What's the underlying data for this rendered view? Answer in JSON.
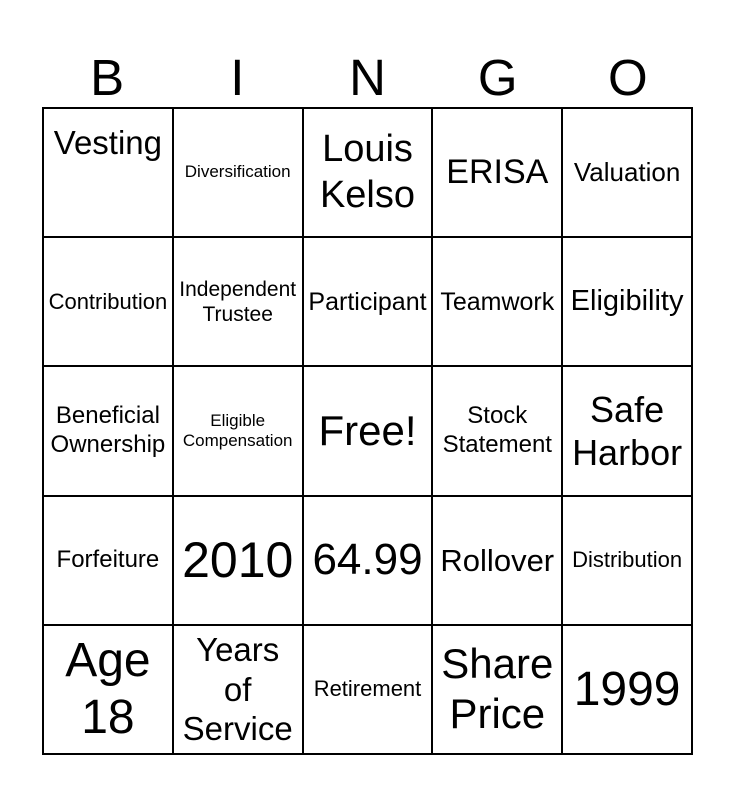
{
  "title": "BINGO",
  "header": {
    "letters": [
      "B",
      "I",
      "N",
      "G",
      "O"
    ]
  },
  "board": {
    "rows": 5,
    "columns": 5,
    "free_space_label": "Free!",
    "cells": [
      {
        "label": "Vesting"
      },
      {
        "label": "Diversification"
      },
      {
        "label": "Louis\nKelso"
      },
      {
        "label": "ERISA"
      },
      {
        "label": "Valuation"
      },
      {
        "label": "Contribution"
      },
      {
        "label": "Independent\nTrustee"
      },
      {
        "label": "Participant"
      },
      {
        "label": "Teamwork"
      },
      {
        "label": "Eligibility"
      },
      {
        "label": "Beneficial\nOwnership"
      },
      {
        "label": "Eligible\nCompensation"
      },
      {
        "label": "Free!"
      },
      {
        "label": "Stock\nStatement"
      },
      {
        "label": "Safe\nHarbor"
      },
      {
        "label": "Forfeiture"
      },
      {
        "label": "2010"
      },
      {
        "label": "64.99"
      },
      {
        "label": "Rollover"
      },
      {
        "label": "Distribution"
      },
      {
        "label": "Age\n18"
      },
      {
        "label": "Years\nof\nService"
      },
      {
        "label": "Retirement"
      },
      {
        "label": "Share\nPrice"
      },
      {
        "label": "1999"
      }
    ]
  },
  "colors": {
    "background": "#ffffff",
    "grid_line": "#000000",
    "text": "#000000"
  }
}
